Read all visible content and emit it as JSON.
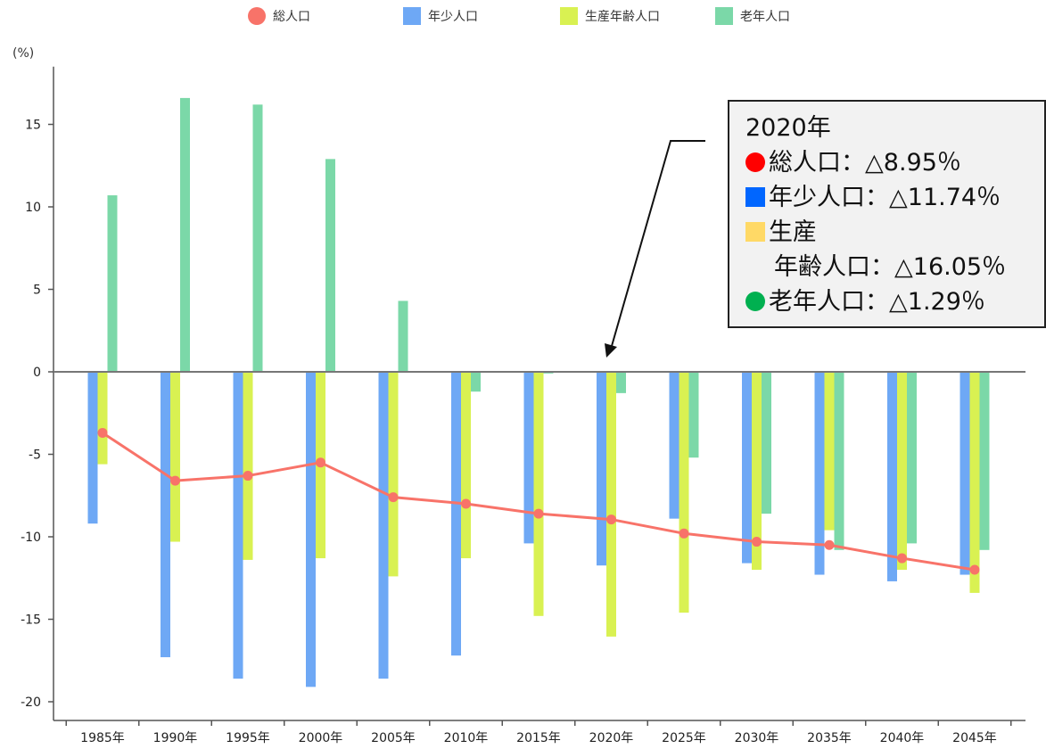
{
  "chart_data": {
    "type": "bar",
    "ylabel": "(%)",
    "ylim": [
      -21,
      18.5
    ],
    "yticks": [
      15,
      10,
      5,
      0,
      -5,
      -10,
      -15,
      -20
    ],
    "categories": [
      "1985年",
      "1990年",
      "1995年",
      "2000年",
      "2005年",
      "2010年",
      "2015年",
      "2020年",
      "2025年",
      "2030年",
      "2035年",
      "2040年",
      "2045年"
    ],
    "legend_position": "top",
    "series": [
      {
        "name": "総人口",
        "type": "line",
        "color": "#f87369",
        "values": [
          -3.7,
          -6.6,
          -6.3,
          -5.5,
          -7.6,
          -8.0,
          -8.6,
          -8.95,
          -9.8,
          -10.3,
          -10.5,
          -11.3,
          -12.0
        ]
      },
      {
        "name": "年少人口",
        "type": "bar",
        "color": "#6ea8f5",
        "values": [
          -9.2,
          -17.3,
          -18.6,
          -19.1,
          -18.6,
          -17.2,
          -10.4,
          -11.74,
          -8.9,
          -11.6,
          -12.3,
          -12.7,
          -12.3
        ]
      },
      {
        "name": "生産年齢人口",
        "type": "bar",
        "color": "#d9f152",
        "values": [
          -5.6,
          -10.3,
          -11.4,
          -11.3,
          -12.4,
          -11.3,
          -14.8,
          -16.05,
          -14.6,
          -12.0,
          -9.6,
          -12.0,
          -13.4
        ]
      },
      {
        "name": "老年人口",
        "type": "bar",
        "color": "#7bd8a8",
        "values": [
          10.7,
          16.6,
          16.2,
          12.9,
          4.3,
          -1.2,
          -0.1,
          -1.29,
          -5.2,
          -8.6,
          -10.8,
          -10.4,
          -10.8
        ]
      }
    ]
  },
  "callout": {
    "title": "2020年",
    "line_total": "総人口：△8.95％",
    "line_youth": "年少人口：△11.74％",
    "line_working_1": "生産",
    "line_working_2": "年齢人口：△16.05％",
    "line_elderly": "老年人口：△1.29％",
    "colors": {
      "total": "#ff0000",
      "youth": "#0066ff",
      "working": "#ffd966",
      "elderly": "#00b050"
    }
  }
}
